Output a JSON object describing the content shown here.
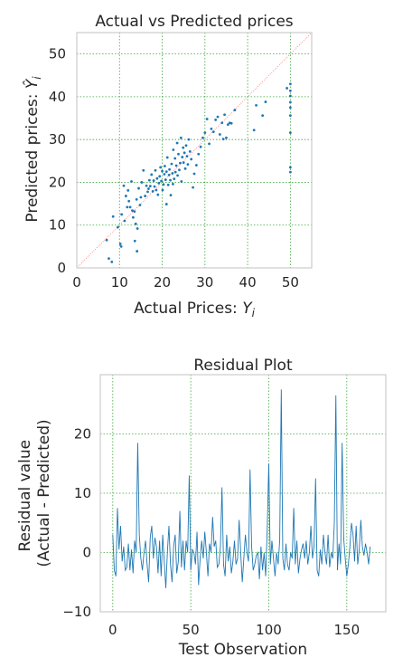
{
  "chart_data": [
    {
      "type": "scatter",
      "title": "Actual vs Predicted prices",
      "xlabel": "Actual Prices: Y_i",
      "ylabel": "Predicted prices: Ŷ_i",
      "xlim": [
        0,
        55
      ],
      "ylim": [
        0,
        55
      ],
      "xticks": [
        0,
        10,
        20,
        30,
        40,
        50
      ],
      "yticks": [
        0,
        10,
        20,
        30,
        40,
        50
      ],
      "grid": true,
      "point_color": "#1f77b4",
      "reference_line_color": "#ff6b6b",
      "points": [
        [
          7.0,
          6.5
        ],
        [
          7.5,
          2.2
        ],
        [
          8.2,
          1.4
        ],
        [
          8.5,
          12.0
        ],
        [
          9.6,
          9.5
        ],
        [
          10.2,
          5.6
        ],
        [
          10.4,
          5.0
        ],
        [
          10.5,
          12.5
        ],
        [
          11.0,
          19.2
        ],
        [
          11.2,
          11.0
        ],
        [
          11.5,
          16.8
        ],
        [
          11.8,
          14.2
        ],
        [
          12.0,
          18.1
        ],
        [
          12.2,
          15.6
        ],
        [
          12.5,
          14.2
        ],
        [
          12.8,
          20.2
        ],
        [
          13.0,
          13.4
        ],
        [
          13.2,
          11.8
        ],
        [
          13.5,
          13.2
        ],
        [
          13.6,
          6.3
        ],
        [
          13.8,
          10.3
        ],
        [
          14.0,
          16.0
        ],
        [
          14.1,
          3.9
        ],
        [
          14.2,
          9.2
        ],
        [
          14.5,
          18.6
        ],
        [
          14.8,
          14.7
        ],
        [
          15.0,
          16.5
        ],
        [
          15.2,
          20.0
        ],
        [
          15.6,
          22.8
        ],
        [
          16.0,
          16.8
        ],
        [
          16.3,
          19.2
        ],
        [
          16.6,
          17.8
        ],
        [
          16.8,
          18.5
        ],
        [
          17.0,
          20.5
        ],
        [
          17.2,
          19.1
        ],
        [
          17.5,
          21.8
        ],
        [
          17.8,
          17.9
        ],
        [
          18.0,
          20.4
        ],
        [
          18.2,
          19.0
        ],
        [
          18.4,
          22.8
        ],
        [
          18.6,
          18.2
        ],
        [
          18.8,
          20.9
        ],
        [
          19.0,
          17.1
        ],
        [
          19.2,
          19.8
        ],
        [
          19.4,
          21.4
        ],
        [
          19.6,
          23.5
        ],
        [
          19.8,
          20.3
        ],
        [
          20.0,
          22.6
        ],
        [
          20.1,
          18.2
        ],
        [
          20.3,
          19.5
        ],
        [
          20.5,
          21.9
        ],
        [
          20.6,
          23.8
        ],
        [
          20.8,
          20.6
        ],
        [
          21.0,
          14.9
        ],
        [
          21.0,
          22.5
        ],
        [
          21.2,
          25.8
        ],
        [
          21.4,
          19.4
        ],
        [
          21.6,
          21.7
        ],
        [
          21.7,
          23.0
        ],
        [
          21.9,
          20.5
        ],
        [
          22.0,
          17.0
        ],
        [
          22.2,
          24.3
        ],
        [
          22.4,
          22.1
        ],
        [
          22.5,
          19.6
        ],
        [
          22.6,
          27.6
        ],
        [
          22.8,
          20.8
        ],
        [
          23.0,
          25.6
        ],
        [
          23.1,
          22.4
        ],
        [
          23.3,
          23.9
        ],
        [
          23.5,
          29.2
        ],
        [
          23.6,
          21.6
        ],
        [
          23.8,
          26.6
        ],
        [
          24.0,
          22.9
        ],
        [
          24.2,
          24.5
        ],
        [
          24.4,
          30.4
        ],
        [
          24.5,
          20.2
        ],
        [
          24.7,
          25.9
        ],
        [
          24.9,
          28.1
        ],
        [
          25.0,
          24.6
        ],
        [
          25.2,
          26.9
        ],
        [
          25.4,
          23.2
        ],
        [
          25.6,
          28.6
        ],
        [
          25.8,
          26.1
        ],
        [
          26.0,
          24.2
        ],
        [
          26.2,
          30.0
        ],
        [
          26.5,
          27.2
        ],
        [
          26.8,
          25.4
        ],
        [
          27.2,
          18.8
        ],
        [
          27.5,
          22.0
        ],
        [
          28.0,
          24.0
        ],
        [
          28.5,
          26.6
        ],
        [
          29.0,
          28.3
        ],
        [
          29.5,
          30.4
        ],
        [
          30.0,
          31.6
        ],
        [
          30.5,
          34.8
        ],
        [
          31.0,
          29.0
        ],
        [
          31.5,
          32.5
        ],
        [
          32.0,
          31.8
        ],
        [
          32.5,
          34.6
        ],
        [
          33.0,
          35.3
        ],
        [
          33.5,
          31.2
        ],
        [
          34.0,
          33.9
        ],
        [
          34.3,
          30.1
        ],
        [
          34.6,
          35.8
        ],
        [
          35.0,
          30.4
        ],
        [
          35.4,
          33.5
        ],
        [
          35.8,
          33.9
        ],
        [
          36.2,
          33.8
        ],
        [
          37.0,
          36.9
        ],
        [
          41.5,
          32.2
        ],
        [
          42.0,
          38.0
        ],
        [
          43.5,
          35.6
        ],
        [
          44.2,
          38.8
        ],
        [
          49.2,
          42.0
        ],
        [
          50.0,
          43.0
        ],
        [
          50.0,
          41.4
        ],
        [
          50.0,
          40.2
        ],
        [
          50.0,
          38.7
        ],
        [
          50.0,
          37.5
        ],
        [
          50.0,
          35.6
        ],
        [
          50.0,
          31.6
        ],
        [
          50.0,
          23.5
        ],
        [
          50.0,
          22.4
        ]
      ]
    },
    {
      "type": "line",
      "title": "Residual Plot",
      "xlabel": "Test Observation",
      "ylabel": "Residual value\n(Actual - Predicted)",
      "ylabel_lines": [
        "Residual value",
        "(Actual - Predicted)"
      ],
      "xlim": [
        -8,
        175
      ],
      "ylim": [
        -10,
        30
      ],
      "xticks": [
        0,
        50,
        100,
        150
      ],
      "yticks": [
        -10,
        0,
        10,
        20
      ],
      "grid": true,
      "line_color": "#1f77b4",
      "values": [
        3.0,
        -3.0,
        -4.0,
        7.5,
        0.5,
        4.5,
        -1.5,
        1.0,
        -3.0,
        -2.5,
        1.5,
        -3.0,
        0.5,
        -3.5,
        2.0,
        0.0,
        18.5,
        3.0,
        -1.0,
        -3.0,
        0.0,
        2.0,
        -2.0,
        -5.0,
        2.5,
        4.5,
        -1.0,
        2.5,
        1.0,
        -3.5,
        2.0,
        -4.0,
        3.0,
        -1.5,
        -6.0,
        0.0,
        4.5,
        -2.0,
        -5.0,
        1.0,
        3.0,
        -3.5,
        -1.5,
        7.0,
        -2.5,
        2.0,
        -3.0,
        2.0,
        0.0,
        13.0,
        -3.0,
        0.5,
        0.0,
        -2.0,
        3.5,
        -5.5,
        -1.0,
        2.0,
        -1.0,
        3.5,
        0.0,
        -4.0,
        1.5,
        0.0,
        6.0,
        1.0,
        2.0,
        -2.5,
        -2.0,
        1.0,
        11.0,
        -2.0,
        -4.0,
        3.0,
        -1.5,
        1.0,
        -3.5,
        -1.5,
        2.0,
        -2.0,
        -1.0,
        5.5,
        0.0,
        -5.0,
        -1.0,
        3.0,
        0.0,
        -1.5,
        14.0,
        1.0,
        -3.0,
        -2.0,
        -0.5,
        0.0,
        -4.5,
        1.0,
        -3.0,
        0.0,
        -4.0,
        4.0,
        15.0,
        -2.0,
        2.0,
        -1.0,
        -4.0,
        0.0,
        -2.0,
        2.0,
        27.5,
        -1.0,
        -3.0,
        1.5,
        -2.0,
        -3.0,
        0.0,
        -1.0,
        7.5,
        -2.0,
        2.0,
        -3.5,
        -1.0,
        0.5,
        1.5,
        -1.0,
        2.0,
        -2.0,
        0.0,
        4.5,
        -1.0,
        1.0,
        12.5,
        -3.0,
        -4.0,
        0.5,
        -2.0,
        3.0,
        0.0,
        -2.0,
        3.0,
        -2.5,
        0.0,
        -1.0,
        5.0,
        26.5,
        -3.0,
        1.5,
        -2.0,
        18.5,
        2.5,
        -1.0,
        -4.0,
        -2.0,
        1.0,
        5.0,
        3.0,
        -1.5,
        4.5,
        -2.0,
        0.5,
        5.5,
        1.0,
        -0.5,
        1.5,
        0.0,
        -2.0,
        1.0
      ]
    }
  ]
}
